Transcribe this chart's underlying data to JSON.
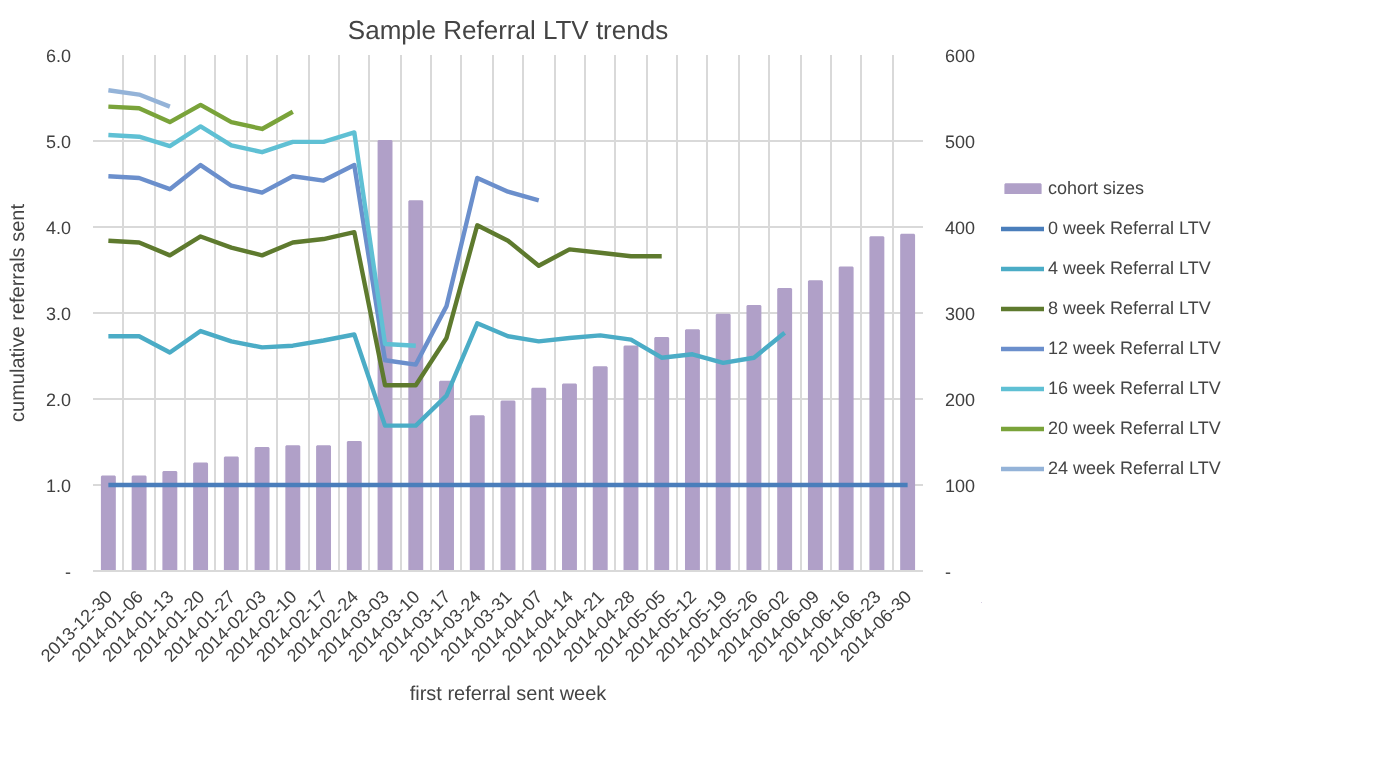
{
  "chart_data": {
    "type": "line",
    "title": "Sample Referral LTV trends",
    "xlabel": "first referral sent week",
    "ylabel": "cumulative referrals sent",
    "categories": [
      "2013-12-30",
      "2014-01-06",
      "2014-01-13",
      "2014-01-20",
      "2014-01-27",
      "2014-02-03",
      "2014-02-10",
      "2014-02-17",
      "2014-02-24",
      "2014-03-03",
      "2014-03-10",
      "2014-03-17",
      "2014-03-24",
      "2014-03-31",
      "2014-04-07",
      "2014-04-14",
      "2014-04-21",
      "2014-04-28",
      "2014-05-05",
      "2014-05-12",
      "2014-05-19",
      "2014-05-26",
      "2014-06-02",
      "2014-06-09",
      "2014-06-16",
      "2014-06-23",
      "2014-06-30"
    ],
    "ylim": [
      0,
      6
    ],
    "yticks": [
      {
        "value": 0,
        "label": "-"
      },
      {
        "value": 1,
        "label": "1.0"
      },
      {
        "value": 2,
        "label": "2.0"
      },
      {
        "value": 3,
        "label": "3.0"
      },
      {
        "value": 4,
        "label": "4.0"
      },
      {
        "value": 5,
        "label": "5.0"
      },
      {
        "value": 6,
        "label": "6.0"
      }
    ],
    "y2lim": [
      0,
      600
    ],
    "y2ticks": [
      {
        "value": 0,
        "label": "-"
      },
      100,
      200,
      300,
      400,
      500,
      600
    ],
    "grid": true,
    "legend": "right",
    "series": [
      {
        "name": "cohort sizes",
        "type": "bar",
        "axis": "y2",
        "color": "#b0a0c8",
        "values": [
          110,
          110,
          115,
          125,
          132,
          143,
          145,
          145,
          150,
          500,
          430,
          220,
          180,
          197,
          212,
          217,
          237,
          261,
          271,
          280,
          298,
          308,
          328,
          337,
          353,
          388,
          391
        ]
      },
      {
        "name": "0 week Referral LTV",
        "color": "#4a7ebb",
        "values": [
          1,
          1,
          1,
          1,
          1,
          1,
          1,
          1,
          1,
          1,
          1,
          1,
          1,
          1,
          1,
          1,
          1,
          1,
          1,
          1,
          1,
          1,
          1,
          1,
          1,
          1,
          1
        ]
      },
      {
        "name": "4 week Referral LTV",
        "color": "#4bacc6",
        "values": [
          2.73,
          2.73,
          2.54,
          2.79,
          2.67,
          2.6,
          2.62,
          2.68,
          2.75,
          1.69,
          1.69,
          2.04,
          2.88,
          2.73,
          2.67,
          2.71,
          2.74,
          2.69,
          2.48,
          2.52,
          2.42,
          2.48,
          2.77,
          null,
          null,
          null,
          null
        ]
      },
      {
        "name": "8 week Referral LTV",
        "color": "#5e7a2e",
        "values": [
          3.84,
          3.82,
          3.67,
          3.89,
          3.76,
          3.67,
          3.82,
          3.86,
          3.94,
          2.16,
          2.16,
          2.71,
          4.02,
          3.84,
          3.55,
          3.74,
          3.7,
          3.66,
          3.66,
          null,
          null,
          null,
          null,
          null,
          null,
          null,
          null
        ]
      },
      {
        "name": "12 week Referral LTV",
        "color": "#6b8fcc",
        "values": [
          4.59,
          4.57,
          4.44,
          4.72,
          4.48,
          4.4,
          4.59,
          4.54,
          4.72,
          2.45,
          2.4,
          3.08,
          4.57,
          4.41,
          4.31,
          null,
          null,
          null,
          null,
          null,
          null,
          null,
          null,
          null,
          null,
          null,
          null
        ]
      },
      {
        "name": "16 week Referral LTV",
        "color": "#5fc0d4",
        "values": [
          5.07,
          5.05,
          4.94,
          5.17,
          4.95,
          4.87,
          4.99,
          4.99,
          5.1,
          2.64,
          2.62,
          null,
          null,
          null,
          null,
          null,
          null,
          null,
          null,
          null,
          null,
          null,
          null,
          null,
          null,
          null,
          null
        ]
      },
      {
        "name": "20 week Referral LTV",
        "color": "#7aa33a",
        "values": [
          5.4,
          5.38,
          5.22,
          5.42,
          5.22,
          5.14,
          5.34,
          null,
          null,
          null,
          null,
          null,
          null,
          null,
          null,
          null,
          null,
          null,
          null,
          null,
          null,
          null,
          null,
          null,
          null,
          null,
          null
        ]
      },
      {
        "name": "24 week Referral LTV",
        "color": "#94b3d8",
        "values": [
          5.59,
          5.54,
          5.4,
          null,
          null,
          null,
          null,
          null,
          null,
          null,
          null,
          null,
          null,
          null,
          null,
          null,
          null,
          null,
          null,
          null,
          null,
          null,
          null,
          null,
          null,
          null,
          null
        ]
      }
    ]
  }
}
